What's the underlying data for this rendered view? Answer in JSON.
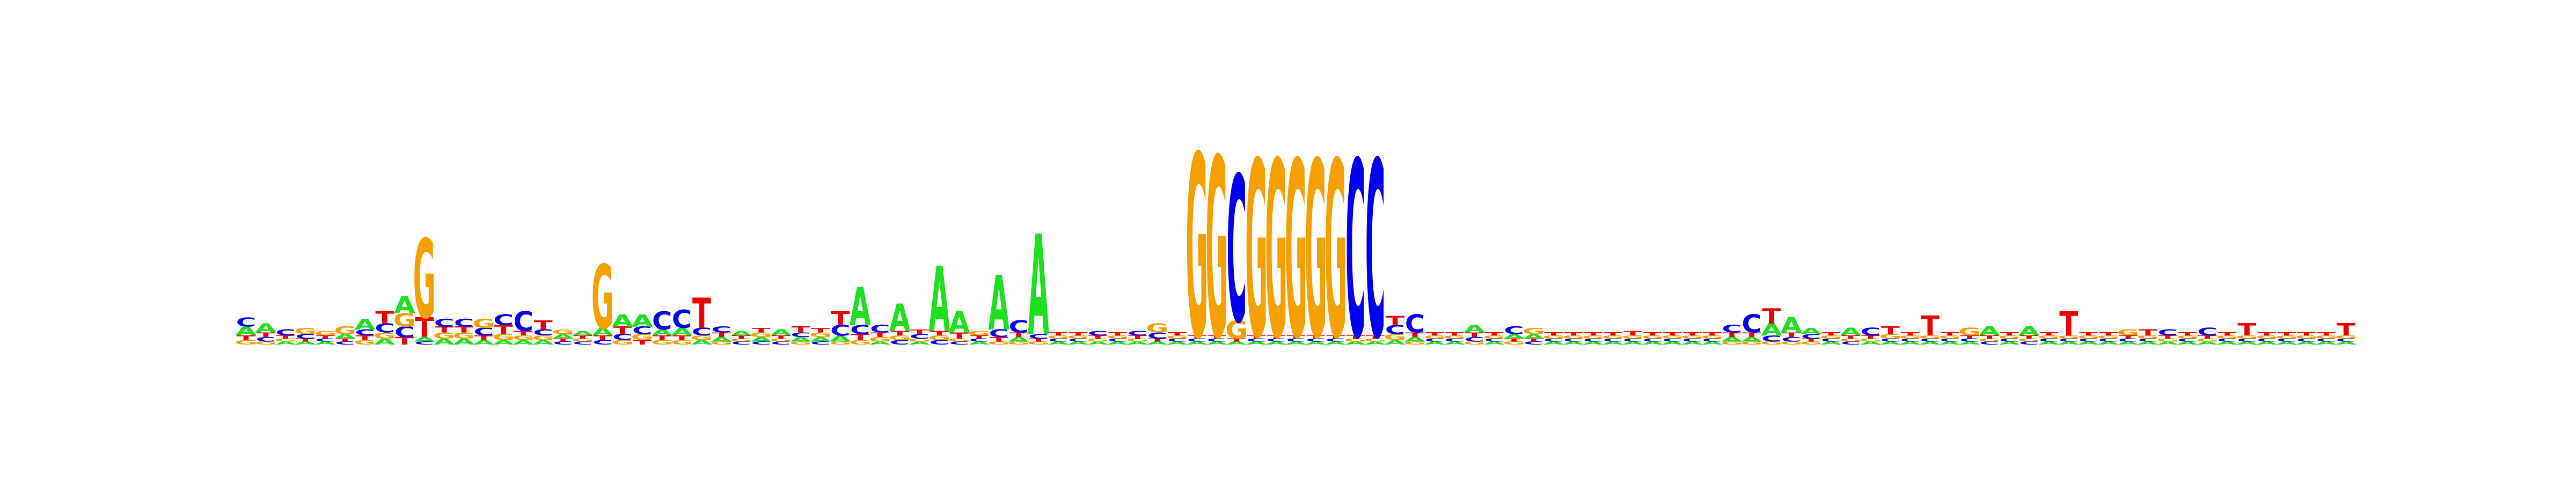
{
  "chart_data": {
    "type": "sequence-logo",
    "title": "",
    "xlabel": "",
    "ylabel": "",
    "ylim_bits": [
      0,
      2
    ],
    "grid": false,
    "legend": "none",
    "alphabet": [
      "A",
      "C",
      "G",
      "T"
    ],
    "colors": {
      "A": "#1FE01F",
      "C": "#0000EE",
      "G": "#F5A000",
      "T": "#EE0000"
    },
    "positions": [
      {
        "A": 0.06,
        "C": 0.06,
        "G": 0.03,
        "T": 0.03
      },
      {
        "A": 0.06,
        "C": 0.03,
        "G": 0.02,
        "T": 0.03
      },
      {
        "A": 0.02,
        "C": 0.04,
        "G": 0.02,
        "T": 0.02
      },
      {
        "A": 0.02,
        "C": 0.03,
        "G": 0.04,
        "T": 0.02
      },
      {
        "A": 0.02,
        "C": 0.02,
        "G": 0.03,
        "T": 0.02
      },
      {
        "A": 0.03,
        "C": 0.02,
        "G": 0.05,
        "T": 0.02
      },
      {
        "A": 0.07,
        "C": 0.04,
        "G": 0.03,
        "T": 0.03
      },
      {
        "A": 0.04,
        "C": 0.06,
        "G": 0.04,
        "T": 0.08
      },
      {
        "A": 0.11,
        "C": 0.07,
        "G": 0.09,
        "T": 0.05
      },
      {
        "A": 0.03,
        "C": 0.02,
        "G": 0.52,
        "T": 0.13
      },
      {
        "A": 0.04,
        "C": 0.05,
        "G": 0.04,
        "T": 0.04
      },
      {
        "A": 0.04,
        "C": 0.05,
        "G": 0.04,
        "T": 0.04
      },
      {
        "A": 0.03,
        "C": 0.05,
        "G": 0.06,
        "T": 0.03
      },
      {
        "A": 0.03,
        "C": 0.07,
        "G": 0.04,
        "T": 0.06
      },
      {
        "A": 0.03,
        "C": 0.13,
        "G": 0.03,
        "T": 0.03
      },
      {
        "A": 0.03,
        "C": 0.04,
        "G": 0.03,
        "T": 0.06
      },
      {
        "A": 0.03,
        "C": 0.02,
        "G": 0.03,
        "T": 0.02
      },
      {
        "A": 0.03,
        "C": 0.02,
        "G": 0.02,
        "T": 0.02
      },
      {
        "A": 0.05,
        "C": 0.03,
        "G": 0.42,
        "T": 0.03
      },
      {
        "A": 0.08,
        "C": 0.04,
        "G": 0.03,
        "T": 0.05
      },
      {
        "A": 0.08,
        "C": 0.05,
        "G": 0.04,
        "T": 0.03
      },
      {
        "A": 0.04,
        "C": 0.12,
        "G": 0.03,
        "T": 0.03
      },
      {
        "A": 0.05,
        "C": 0.12,
        "G": 0.03,
        "T": 0.03
      },
      {
        "A": 0.03,
        "C": 0.05,
        "G": 0.03,
        "T": 0.2
      },
      {
        "A": 0.03,
        "C": 0.04,
        "G": 0.02,
        "T": 0.03
      },
      {
        "A": 0.03,
        "C": 0.02,
        "G": 0.02,
        "T": 0.02
      },
      {
        "A": 0.03,
        "C": 0.02,
        "G": 0.03,
        "T": 0.03
      },
      {
        "A": 0.04,
        "C": 0.02,
        "G": 0.02,
        "T": 0.02
      },
      {
        "A": 0.03,
        "C": 0.03,
        "G": 0.02,
        "T": 0.04
      },
      {
        "A": 0.03,
        "C": 0.02,
        "G": 0.03,
        "T": 0.03
      },
      {
        "A": 0.04,
        "C": 0.07,
        "G": 0.02,
        "T": 0.09
      },
      {
        "A": 0.25,
        "C": 0.06,
        "G": 0.03,
        "T": 0.04
      },
      {
        "A": 0.02,
        "C": 0.05,
        "G": 0.03,
        "T": 0.03
      },
      {
        "A": 0.18,
        "C": 0.03,
        "G": 0.03,
        "T": 0.03
      },
      {
        "A": 0.02,
        "C": 0.03,
        "G": 0.02,
        "T": 0.03
      },
      {
        "A": 0.43,
        "C": 0.03,
        "G": 0.03,
        "T": 0.03
      },
      {
        "A": 0.14,
        "C": 0.02,
        "G": 0.02,
        "T": 0.04
      },
      {
        "A": 0.02,
        "C": 0.02,
        "G": 0.03,
        "T": 0.02
      },
      {
        "A": 0.36,
        "C": 0.05,
        "G": 0.02,
        "T": 0.03
      },
      {
        "A": 0.03,
        "C": 0.08,
        "G": 0.02,
        "T": 0.03
      },
      {
        "A": 0.66,
        "C": 0.03,
        "G": 0.02,
        "T": 0.02
      },
      {
        "A": 0.02,
        "C": 0.02,
        "G": 0.02,
        "T": 0.02
      },
      {
        "A": 0.02,
        "C": 0.02,
        "G": 0.02,
        "T": 0.02
      },
      {
        "A": 0.02,
        "C": 0.03,
        "G": 0.02,
        "T": 0.02
      },
      {
        "A": 0.02,
        "C": 0.02,
        "G": 0.02,
        "T": 0.02
      },
      {
        "A": 0.02,
        "C": 0.03,
        "G": 0.02,
        "T": 0.02
      },
      {
        "A": 0.02,
        "C": 0.04,
        "G": 0.06,
        "T": 0.02
      },
      {
        "A": 0.02,
        "C": 0.02,
        "G": 0.02,
        "T": 0.02
      },
      {
        "A": 0.02,
        "C": 0.02,
        "G": 1.2,
        "T": 0.02
      },
      {
        "A": 0.02,
        "C": 0.02,
        "G": 1.18,
        "T": 0.02
      },
      {
        "A": 0.02,
        "C": 0.96,
        "G": 0.12,
        "T": 0.02
      },
      {
        "A": 0.02,
        "C": 0.02,
        "G": 1.16,
        "T": 0.02
      },
      {
        "A": 0.02,
        "C": 0.02,
        "G": 1.16,
        "T": 0.02
      },
      {
        "A": 0.02,
        "C": 0.02,
        "G": 1.16,
        "T": 0.02
      },
      {
        "A": 0.02,
        "C": 0.02,
        "G": 1.16,
        "T": 0.02
      },
      {
        "A": 0.02,
        "C": 0.02,
        "G": 1.16,
        "T": 0.02
      },
      {
        "A": 0.02,
        "C": 1.16,
        "G": 0.02,
        "T": 0.02
      },
      {
        "A": 0.02,
        "C": 1.16,
        "G": 0.02,
        "T": 0.02
      },
      {
        "A": 0.03,
        "C": 0.06,
        "G": 0.04,
        "T": 0.06
      },
      {
        "A": 0.03,
        "C": 0.12,
        "G": 0.02,
        "T": 0.03
      },
      {
        "A": 0.02,
        "C": 0.02,
        "G": 0.02,
        "T": 0.02
      },
      {
        "A": 0.02,
        "C": 0.02,
        "G": 0.02,
        "T": 0.02
      },
      {
        "A": 0.05,
        "C": 0.03,
        "G": 0.02,
        "T": 0.03
      },
      {
        "A": 0.02,
        "C": 0.02,
        "G": 0.02,
        "T": 0.02
      },
      {
        "A": 0.03,
        "C": 0.05,
        "G": 0.02,
        "T": 0.02
      },
      {
        "A": 0.03,
        "C": 0.02,
        "G": 0.04,
        "T": 0.02
      },
      {
        "A": 0.02,
        "C": 0.02,
        "G": 0.02,
        "T": 0.02
      },
      {
        "A": 0.02,
        "C": 0.02,
        "G": 0.02,
        "T": 0.02
      },
      {
        "A": 0.02,
        "C": 0.02,
        "G": 0.02,
        "T": 0.02
      },
      {
        "A": 0.02,
        "C": 0.02,
        "G": 0.02,
        "T": 0.02
      },
      {
        "A": 0.02,
        "C": 0.02,
        "G": 0.02,
        "T": 0.03
      },
      {
        "A": 0.02,
        "C": 0.02,
        "G": 0.02,
        "T": 0.02
      },
      {
        "A": 0.02,
        "C": 0.02,
        "G": 0.02,
        "T": 0.02
      },
      {
        "A": 0.02,
        "C": 0.02,
        "G": 0.02,
        "T": 0.02
      },
      {
        "A": 0.02,
        "C": 0.02,
        "G": 0.02,
        "T": 0.02
      },
      {
        "A": 0.03,
        "C": 0.05,
        "G": 0.02,
        "T": 0.03
      },
      {
        "A": 0.03,
        "C": 0.12,
        "G": 0.02,
        "T": 0.03
      },
      {
        "A": 0.08,
        "C": 0.04,
        "G": 0.02,
        "T": 0.1
      },
      {
        "A": 0.1,
        "C": 0.03,
        "G": 0.02,
        "T": 0.03
      },
      {
        "A": 0.04,
        "C": 0.03,
        "G": 0.02,
        "T": 0.02
      },
      {
        "A": 0.02,
        "C": 0.02,
        "G": 0.02,
        "T": 0.02
      },
      {
        "A": 0.05,
        "C": 0.02,
        "G": 0.02,
        "T": 0.02
      },
      {
        "A": 0.02,
        "C": 0.05,
        "G": 0.02,
        "T": 0.02
      },
      {
        "A": 0.02,
        "C": 0.02,
        "G": 0.03,
        "T": 0.05
      },
      {
        "A": 0.02,
        "C": 0.02,
        "G": 0.02,
        "T": 0.02
      },
      {
        "A": 0.02,
        "C": 0.02,
        "G": 0.02,
        "T": 0.13
      },
      {
        "A": 0.02,
        "C": 0.02,
        "G": 0.02,
        "T": 0.02
      },
      {
        "A": 0.02,
        "C": 0.02,
        "G": 0.05,
        "T": 0.02
      },
      {
        "A": 0.06,
        "C": 0.02,
        "G": 0.02,
        "T": 0.02
      },
      {
        "A": 0.02,
        "C": 0.02,
        "G": 0.02,
        "T": 0.02
      },
      {
        "A": 0.06,
        "C": 0.02,
        "G": 0.02,
        "T": 0.02
      },
      {
        "A": 0.02,
        "C": 0.02,
        "G": 0.02,
        "T": 0.02
      },
      {
        "A": 0.02,
        "C": 0.02,
        "G": 0.02,
        "T": 0.16
      },
      {
        "A": 0.02,
        "C": 0.02,
        "G": 0.02,
        "T": 0.02
      },
      {
        "A": 0.02,
        "C": 0.02,
        "G": 0.02,
        "T": 0.02
      },
      {
        "A": 0.02,
        "C": 0.02,
        "G": 0.04,
        "T": 0.02
      },
      {
        "A": 0.02,
        "C": 0.02,
        "G": 0.02,
        "T": 0.04
      },
      {
        "A": 0.02,
        "C": 0.04,
        "G": 0.02,
        "T": 0.02
      },
      {
        "A": 0.02,
        "C": 0.02,
        "G": 0.02,
        "T": 0.02
      },
      {
        "A": 0.02,
        "C": 0.05,
        "G": 0.02,
        "T": 0.02
      },
      {
        "A": 0.02,
        "C": 0.02,
        "G": 0.02,
        "T": 0.02
      },
      {
        "A": 0.02,
        "C": 0.02,
        "G": 0.02,
        "T": 0.08
      },
      {
        "A": 0.02,
        "C": 0.02,
        "G": 0.02,
        "T": 0.02
      },
      {
        "A": 0.02,
        "C": 0.02,
        "G": 0.02,
        "T": 0.02
      },
      {
        "A": 0.02,
        "C": 0.02,
        "G": 0.02,
        "T": 0.02
      },
      {
        "A": 0.02,
        "C": 0.02,
        "G": 0.02,
        "T": 0.02
      },
      {
        "A": 0.02,
        "C": 0.02,
        "G": 0.02,
        "T": 0.08
      }
    ]
  }
}
